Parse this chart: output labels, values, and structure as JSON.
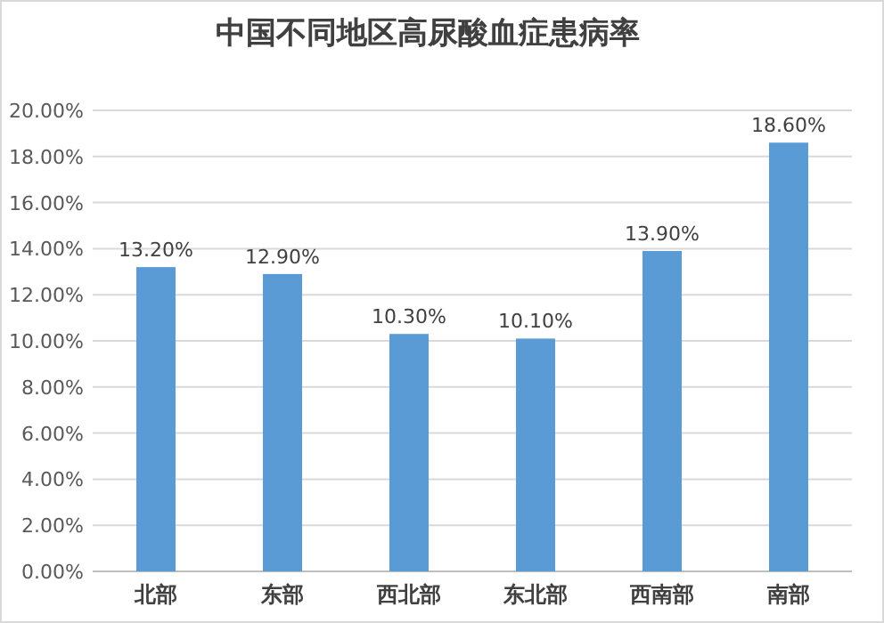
{
  "chart_data": {
    "type": "bar",
    "title": "中国不同地区高尿酸血症患病率",
    "categories": [
      "北部",
      "东部",
      "西北部",
      "东北部",
      "西南部",
      "南部"
    ],
    "values": [
      13.2,
      12.9,
      10.3,
      10.1,
      13.9,
      18.6
    ],
    "color": "#5b9bd5",
    "value_labels": [
      "13.20%",
      "12.90%",
      "10.30%",
      "10.10%",
      "13.90%",
      "18.60%"
    ],
    "ylim": [
      0,
      20
    ],
    "yticks": [
      {
        "value": 0,
        "label": "0.00%"
      },
      {
        "value": 2,
        "label": "2.00%"
      },
      {
        "value": 4,
        "label": "4.00%"
      },
      {
        "value": 6,
        "label": "6.00%"
      },
      {
        "value": 8,
        "label": "8.00%"
      },
      {
        "value": 10,
        "label": "10.00%"
      },
      {
        "value": 12,
        "label": "12.00%"
      },
      {
        "value": 14,
        "label": "14.00%"
      },
      {
        "value": 16,
        "label": "16.00%"
      },
      {
        "value": 18,
        "label": "18.00%"
      },
      {
        "value": 20,
        "label": "20.00%"
      }
    ],
    "grid": "y"
  }
}
